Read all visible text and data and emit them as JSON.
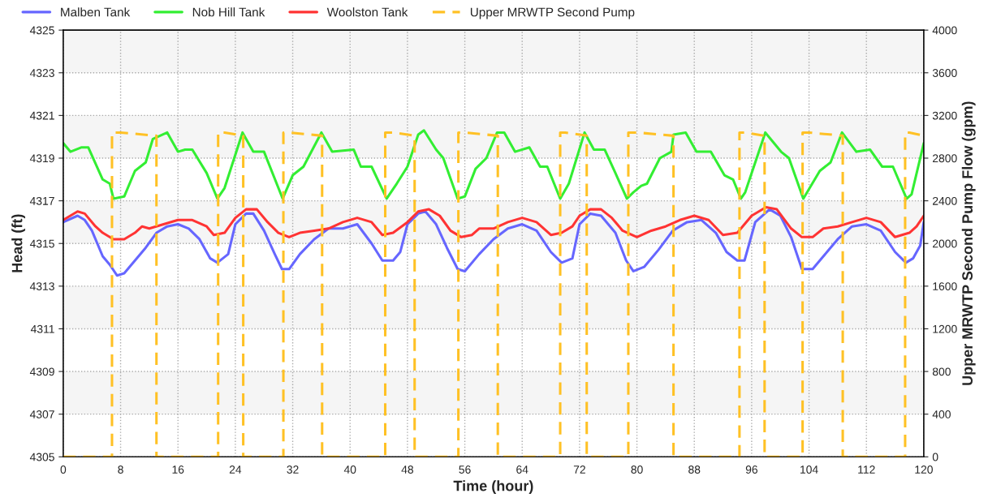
{
  "chart_data": {
    "type": "line",
    "xlabel": "Time (hour)",
    "ylabel": "Head (ft)",
    "y2label": "Upper MRWTP Second Pump Flow (gpm)",
    "xlim": [
      0,
      120
    ],
    "xticks": [
      0,
      8,
      16,
      24,
      32,
      40,
      48,
      56,
      64,
      72,
      80,
      88,
      96,
      104,
      112,
      120
    ],
    "ylim": [
      4305,
      4325
    ],
    "yticks": [
      4305,
      4307,
      4309,
      4311,
      4313,
      4315,
      4317,
      4319,
      4321,
      4323,
      4325
    ],
    "y2lim": [
      0,
      4000
    ],
    "y2ticks": [
      0,
      400,
      800,
      1200,
      1600,
      2000,
      2400,
      2800,
      3200,
      3600,
      4000
    ],
    "grid": true,
    "legend": "top left",
    "marker": "none",
    "bands": [
      {
        "axis": "y",
        "from": 4307,
        "to": 4309,
        "label": null,
        "color": "#f5f5f5"
      },
      {
        "axis": "y",
        "from": 4311,
        "to": 4313,
        "label": null,
        "color": "#f5f5f5"
      },
      {
        "axis": "y",
        "from": 4315,
        "to": 4317,
        "label": null,
        "color": "#f5f5f5"
      },
      {
        "axis": "y",
        "from": 4319,
        "to": 4321,
        "label": null,
        "color": "#f5f5f5"
      },
      {
        "axis": "y",
        "from": 4323,
        "to": 4325,
        "label": null,
        "color": "#f5f5f5"
      }
    ],
    "series": [
      {
        "name": "Malben Tank",
        "color": "#6666ff",
        "line_style": "solid",
        "x": [
          0,
          2,
          3,
          4,
          5.5,
          6.5,
          7.5,
          8.5,
          10,
          11.5,
          13,
          14.5,
          16,
          17.5,
          19,
          20.5,
          21.5,
          23,
          24,
          25.5,
          26.5,
          28,
          29.5,
          30.5,
          31.5,
          33,
          35,
          37,
          39,
          41,
          43,
          44.5,
          46,
          47,
          48,
          49.5,
          50.5,
          52,
          53.5,
          55,
          56,
          58,
          60,
          62,
          64,
          66,
          68,
          69.5,
          71,
          72,
          73.5,
          75,
          77,
          78.5,
          79.5,
          81,
          83,
          85,
          87,
          89,
          91,
          92.5,
          94,
          95,
          96.5,
          98.5,
          100,
          101.5,
          103,
          104.5,
          106,
          108,
          110,
          112,
          114,
          116,
          117.5,
          118.5,
          119.5,
          120
        ],
        "values": [
          4316.0,
          4316.3,
          4316.1,
          4315.6,
          4314.4,
          4314.0,
          4313.5,
          4313.6,
          4314.2,
          4314.8,
          4315.5,
          4315.8,
          4315.9,
          4315.7,
          4315.2,
          4314.3,
          4314.1,
          4314.5,
          4315.9,
          4316.4,
          4316.4,
          4315.6,
          4314.5,
          4313.8,
          4313.8,
          4314.5,
          4315.2,
          4315.7,
          4315.7,
          4315.9,
          4315.0,
          4314.2,
          4314.2,
          4314.6,
          4315.9,
          4316.4,
          4316.5,
          4315.9,
          4314.8,
          4313.8,
          4313.7,
          4314.5,
          4315.2,
          4315.7,
          4315.9,
          4315.6,
          4314.6,
          4314.1,
          4314.3,
          4315.9,
          4316.4,
          4316.3,
          4315.5,
          4314.2,
          4313.7,
          4313.9,
          4314.7,
          4315.6,
          4316.0,
          4316.1,
          4315.5,
          4314.6,
          4314.2,
          4314.2,
          4316.0,
          4316.6,
          4316.3,
          4315.3,
          4313.8,
          4313.8,
          4314.4,
          4315.2,
          4315.8,
          4315.9,
          4315.6,
          4314.6,
          4314.1,
          4314.3,
          4314.9,
          4316.0
        ]
      },
      {
        "name": "Nob Hill Tank",
        "color": "#33ee33",
        "line_style": "solid",
        "x": [
          0,
          1,
          2.5,
          3.5,
          5.5,
          6.5,
          7,
          8.5,
          10,
          11.5,
          12.5,
          14.5,
          16,
          17,
          18,
          20,
          21.5,
          22.5,
          25,
          26.5,
          28,
          30.6,
          32,
          33.5,
          36,
          37.5,
          40.5,
          41.5,
          43,
          45.1,
          46.5,
          48,
          49.5,
          50.3,
          52,
          53,
          55,
          56,
          57.5,
          59,
          60.5,
          61.5,
          63,
          65,
          66.5,
          67.5,
          69.3,
          70.5,
          72.7,
          74,
          75.5,
          77,
          78.6,
          79.5,
          80.6,
          81.4,
          83.2,
          84.8,
          85.1,
          86.8,
          88.3,
          90.3,
          92.2,
          93.4,
          94.5,
          95.1,
          97.9,
          100.1,
          101.2,
          103.2,
          105.5,
          107,
          108.6,
          110.6,
          112.5,
          114.2,
          115.7,
          117.6,
          118.3,
          120
        ],
        "values": [
          4319.7,
          4319.3,
          4319.5,
          4319.5,
          4318.0,
          4317.8,
          4317.1,
          4317.2,
          4318.4,
          4318.8,
          4319.9,
          4320.2,
          4319.3,
          4319.4,
          4319.4,
          4318.3,
          4317.1,
          4317.6,
          4320.2,
          4319.3,
          4319.3,
          4317.1,
          4318.2,
          4318.6,
          4320.2,
          4319.3,
          4319.4,
          4318.6,
          4318.6,
          4317.1,
          4317.8,
          4318.6,
          4320.1,
          4320.3,
          4319.4,
          4319.0,
          4317.1,
          4317.2,
          4318.5,
          4319.0,
          4320.2,
          4320.2,
          4319.3,
          4319.5,
          4318.6,
          4318.6,
          4317.1,
          4317.8,
          4320.2,
          4319.4,
          4319.4,
          4318.3,
          4317.1,
          4317.4,
          4317.7,
          4317.8,
          4319.0,
          4319.3,
          4320.1,
          4320.2,
          4319.3,
          4319.3,
          4318.2,
          4318.0,
          4317.1,
          4317.4,
          4320.2,
          4319.3,
          4319.0,
          4317.1,
          4318.4,
          4318.8,
          4320.2,
          4319.3,
          4319.4,
          4318.6,
          4318.6,
          4317.1,
          4317.3,
          4319.7
        ]
      },
      {
        "name": "Woolston Tank",
        "color": "#ff3333",
        "line_style": "solid",
        "x": [
          0,
          2,
          3,
          4.5,
          5.5,
          7,
          8.5,
          10,
          11,
          12,
          14,
          16,
          18,
          20,
          21,
          22.5,
          24,
          25.5,
          27,
          28.5,
          30,
          31.5,
          33,
          35,
          37,
          39,
          41,
          43,
          44.5,
          46,
          48,
          49.5,
          51,
          52.5,
          54,
          55.5,
          57,
          58,
          60,
          62,
          64,
          66,
          68,
          69.5,
          71,
          72,
          73.5,
          75,
          76.5,
          78,
          80,
          82,
          84,
          86,
          88,
          90,
          92,
          94,
          96,
          98,
          99.5,
          101.5,
          103,
          104.5,
          106,
          108,
          110,
          112,
          114,
          116,
          118,
          119,
          120
        ],
        "values": [
          4316.1,
          4316.5,
          4316.4,
          4315.8,
          4315.5,
          4315.2,
          4315.2,
          4315.5,
          4315.8,
          4315.7,
          4315.9,
          4316.1,
          4316.1,
          4315.8,
          4315.4,
          4315.5,
          4316.2,
          4316.6,
          4316.6,
          4316.0,
          4315.5,
          4315.3,
          4315.5,
          4315.6,
          4315.7,
          4316.0,
          4316.2,
          4316.0,
          4315.4,
          4315.5,
          4316.0,
          4316.5,
          4316.6,
          4316.3,
          4315.6,
          4315.3,
          4315.4,
          4315.7,
          4315.7,
          4316.0,
          4316.2,
          4316.0,
          4315.4,
          4315.5,
          4315.8,
          4316.3,
          4316.6,
          4316.6,
          4316.2,
          4315.6,
          4315.3,
          4315.6,
          4315.8,
          4316.1,
          4316.3,
          4316.1,
          4315.4,
          4315.5,
          4316.3,
          4316.7,
          4316.6,
          4315.7,
          4315.3,
          4315.3,
          4315.7,
          4315.8,
          4316.0,
          4316.2,
          4316.0,
          4315.3,
          4315.5,
          4315.8,
          4316.3
        ]
      },
      {
        "name": "Upper MRWTP Second Pump",
        "color": "#ffc125",
        "line_style": "dashed",
        "axis": "y2",
        "x": [
          0,
          6.8,
          6.8,
          8,
          13,
          13,
          21.6,
          21.6,
          22.5,
          25.1,
          25.1,
          30.7,
          30.7,
          31.5,
          36.1,
          36.1,
          44.9,
          44.9,
          46,
          49,
          49,
          55.1,
          55.1,
          56,
          60.6,
          60.6,
          69.3,
          69.3,
          70,
          73,
          73,
          78.8,
          78.8,
          80,
          85.1,
          85.1,
          94.3,
          94.3,
          95,
          97.8,
          97.8,
          103.1,
          103.1,
          104,
          108.7,
          108.7,
          117.4,
          117.4,
          118,
          120
        ],
        "values": [
          0,
          0,
          3040,
          3040,
          3010,
          0,
          0,
          3040,
          3040,
          3010,
          0,
          0,
          3040,
          3040,
          3010,
          0,
          0,
          3040,
          3040,
          3010,
          0,
          0,
          3040,
          3040,
          3010,
          0,
          0,
          3040,
          3040,
          3010,
          0,
          0,
          3040,
          3040,
          3010,
          0,
          0,
          3040,
          3040,
          3010,
          0,
          0,
          3040,
          3040,
          3010,
          0,
          0,
          3040,
          3040,
          3010
        ]
      }
    ]
  }
}
